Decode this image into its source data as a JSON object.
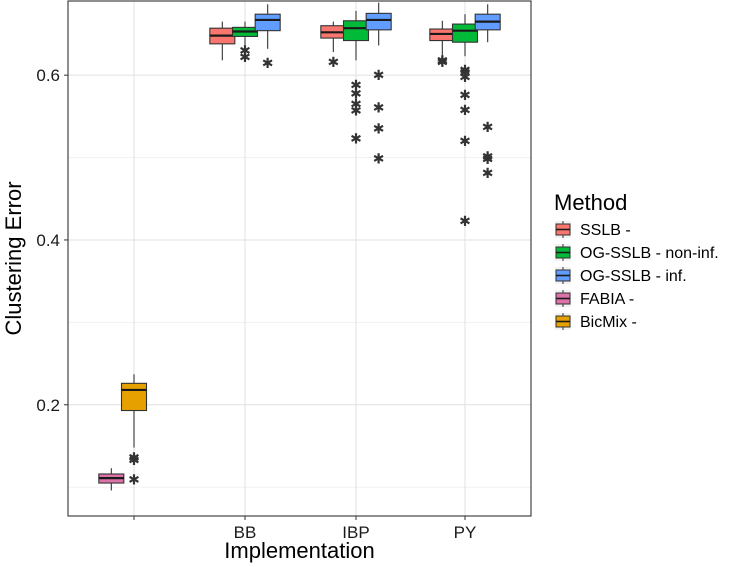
{
  "chart_data": {
    "type": "boxplot",
    "title": "",
    "xlabel": "Implementation",
    "ylabel": "Clustering Error",
    "ylim": [
      0.065,
      0.69
    ],
    "y_ticks": [
      0.2,
      0.4,
      0.6
    ],
    "y_tick_labels": [
      "0.2",
      "0.4",
      "0.6"
    ],
    "categories": [
      "",
      "BB",
      "IBP",
      "PY"
    ],
    "grid": true,
    "legend_position": "right",
    "legend": {
      "title": "Method",
      "entries": [
        {
          "label": "SSLB -",
          "color": "#F8766D"
        },
        {
          "label": "OG-SSLB - non-inf.",
          "color": "#00BA38"
        },
        {
          "label": "OG-SSLB - inf.",
          "color": "#619CFF"
        },
        {
          "label": "FABIA -",
          "color": "#DB72A8"
        },
        {
          "label": "BicMix -",
          "color": "#E6A000"
        }
      ]
    },
    "boxes": [
      {
        "category": "",
        "method": "FABIA -",
        "color": "#DB72A8",
        "slot": -0.667,
        "lower_whisker": 0.096,
        "q1": 0.105,
        "median": 0.111,
        "q3": 0.116,
        "upper_whisker": 0.123,
        "outliers": []
      },
      {
        "category": "",
        "method": "BicMix -",
        "color": "#E6A000",
        "slot": 0,
        "lower_whisker": 0.148,
        "q1": 0.193,
        "median": 0.218,
        "q3": 0.226,
        "upper_whisker": 0.237,
        "outliers": [
          0.136,
          0.133,
          0.109
        ]
      },
      {
        "category": "BB",
        "method": "SSLB -",
        "color": "#F8766D",
        "slot": -0.667,
        "lower_whisker": 0.618,
        "q1": 0.638,
        "median": 0.648,
        "q3": 0.657,
        "upper_whisker": 0.665,
        "outliers": []
      },
      {
        "category": "BB",
        "method": "OG-SSLB - non-inf.",
        "color": "#00BA38",
        "slot": 0,
        "lower_whisker": 0.635,
        "q1": 0.647,
        "median": 0.653,
        "q3": 0.658,
        "upper_whisker": 0.665,
        "outliers": [
          0.63,
          0.622
        ]
      },
      {
        "category": "BB",
        "method": "OG-SSLB - inf.",
        "color": "#619CFF",
        "slot": 0.667,
        "lower_whisker": 0.632,
        "q1": 0.654,
        "median": 0.667,
        "q3": 0.674,
        "upper_whisker": 0.686,
        "outliers": [
          0.615
        ]
      },
      {
        "category": "IBP",
        "method": "SSLB -",
        "color": "#F8766D",
        "slot": -0.667,
        "lower_whisker": 0.628,
        "q1": 0.645,
        "median": 0.652,
        "q3": 0.66,
        "upper_whisker": 0.665,
        "outliers": [
          0.616
        ]
      },
      {
        "category": "IBP",
        "method": "OG-SSLB - non-inf.",
        "color": "#00BA38",
        "slot": 0,
        "lower_whisker": 0.618,
        "q1": 0.642,
        "median": 0.657,
        "q3": 0.666,
        "upper_whisker": 0.678,
        "outliers": [
          0.588,
          0.578,
          0.565,
          0.557,
          0.523
        ]
      },
      {
        "category": "IBP",
        "method": "OG-SSLB - inf.",
        "color": "#619CFF",
        "slot": 0.667,
        "lower_whisker": 0.636,
        "q1": 0.655,
        "median": 0.667,
        "q3": 0.675,
        "upper_whisker": 0.688,
        "outliers": [
          0.6,
          0.561,
          0.535,
          0.499
        ]
      },
      {
        "category": "PY",
        "method": "SSLB -",
        "color": "#F8766D",
        "slot": -0.667,
        "lower_whisker": 0.622,
        "q1": 0.642,
        "median": 0.65,
        "q3": 0.656,
        "upper_whisker": 0.666,
        "outliers": [
          0.618,
          0.616
        ]
      },
      {
        "category": "PY",
        "method": "OG-SSLB - non-inf.",
        "color": "#00BA38",
        "slot": 0,
        "lower_whisker": 0.623,
        "q1": 0.64,
        "median": 0.654,
        "q3": 0.662,
        "upper_whisker": 0.674,
        "outliers": [
          0.606,
          0.603,
          0.598,
          0.576,
          0.558,
          0.52,
          0.423
        ]
      },
      {
        "category": "PY",
        "method": "OG-SSLB - inf.",
        "color": "#619CFF",
        "slot": 0.667,
        "lower_whisker": 0.64,
        "q1": 0.655,
        "median": 0.665,
        "q3": 0.674,
        "upper_whisker": 0.686,
        "outliers": [
          0.537,
          0.501,
          0.498,
          0.481
        ]
      }
    ]
  }
}
